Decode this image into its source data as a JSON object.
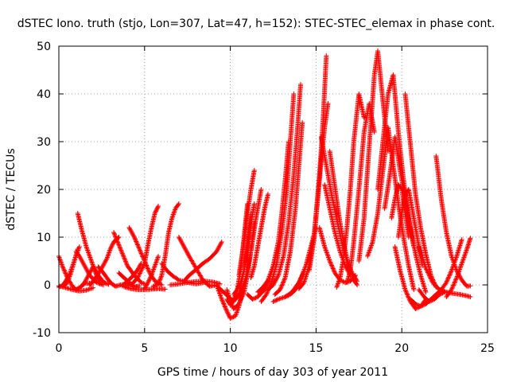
{
  "chart_data": {
    "type": "scatter",
    "title": "dSTEC Iono. truth (stjo, Lon=307, Lat=47, h=152): STEC-STEC_elemax in phase cont.",
    "xlabel": "GPS time / hours of day 303 of year 2011",
    "ylabel": "dSTEC  / TECUs",
    "xlim": [
      0,
      25
    ],
    "ylim": [
      -10,
      50
    ],
    "xticks": [
      0,
      5,
      10,
      15,
      20,
      25
    ],
    "yticks": [
      -10,
      0,
      10,
      20,
      30,
      40,
      50
    ],
    "grid": true,
    "marker": "+",
    "color": "#ff0000",
    "series": [
      {
        "x": [
          0.0,
          0.2,
          0.5,
          0.8,
          1.0,
          1.2,
          1.5,
          2.0
        ],
        "y": [
          6,
          4,
          1.5,
          -0.3,
          -1.0,
          -0.6,
          0.3,
          0.4
        ]
      },
      {
        "x": [
          0.0,
          0.2,
          0.4,
          0.6,
          0.8,
          1.0,
          1.2
        ],
        "y": [
          -0.5,
          -0.2,
          0.8,
          2.0,
          4.0,
          6.0,
          8.0
        ]
      },
      {
        "x": [
          0.3,
          0.5,
          0.7,
          0.9,
          1.1
        ],
        "y": [
          -0.2,
          0.5,
          2.5,
          5.0,
          7.5
        ]
      },
      {
        "x": [
          0.0,
          0.4,
          0.8,
          1.2,
          1.6,
          2.0
        ],
        "y": [
          -0.2,
          -0.6,
          -1.0,
          -1.3,
          -1.1,
          -0.6
        ]
      },
      {
        "x": [
          1.1,
          1.3,
          1.6,
          2.0,
          2.3,
          2.6,
          2.9
        ],
        "y": [
          15,
          12,
          8,
          4,
          2,
          0.6,
          0.1
        ]
      },
      {
        "x": [
          1.0,
          1.2,
          1.5,
          1.8,
          2.2,
          2.6
        ],
        "y": [
          7,
          6,
          4,
          2,
          0.5,
          0.0
        ]
      },
      {
        "x": [
          1.3,
          1.5,
          1.8,
          2.0,
          2.2,
          2.4
        ],
        "y": [
          -0.3,
          0.5,
          2.5,
          3.8,
          2.0,
          0.2
        ]
      },
      {
        "x": [
          1.8,
          2.0,
          2.2,
          2.5,
          2.8,
          3.0,
          3.2,
          3.5
        ],
        "y": [
          0.0,
          0.8,
          1.8,
          3.5,
          5.5,
          7.5,
          9.0,
          10.0
        ]
      },
      {
        "x": [
          2.3,
          2.6,
          3.0,
          3.3,
          3.6,
          4.0
        ],
        "y": [
          3.8,
          2.5,
          0.5,
          -0.3,
          0.0,
          0.2
        ]
      },
      {
        "x": [
          3.2,
          3.6,
          4.0,
          4.4,
          4.8,
          5.0
        ],
        "y": [
          11,
          7.5,
          4,
          2,
          0.5,
          0.2
        ]
      },
      {
        "x": [
          3.7,
          4.0,
          4.3,
          4.6,
          4.8
        ],
        "y": [
          -0.2,
          0.8,
          1.8,
          3.2,
          4.5
        ]
      },
      {
        "x": [
          3.5,
          3.8,
          4.1,
          4.4,
          4.7
        ],
        "y": [
          2.5,
          1.5,
          0.5,
          -0.4,
          -0.2
        ]
      },
      {
        "x": [
          4.1,
          4.4,
          4.7,
          5.0,
          5.3,
          5.6,
          6.0
        ],
        "y": [
          12,
          10,
          7.5,
          5,
          2.5,
          0.8,
          0.0
        ]
      },
      {
        "x": [
          4.0,
          4.3,
          4.6,
          5.0,
          5.2,
          5.4,
          5.6,
          5.8
        ],
        "y": [
          -0.2,
          0.3,
          1.5,
          4.5,
          8.5,
          12,
          15,
          16.5
        ]
      },
      {
        "x": [
          3.8,
          4.2,
          4.6,
          5.0,
          5.4,
          5.8,
          6.2
        ],
        "y": [
          -0.4,
          -0.8,
          -1.0,
          -1.0,
          -0.9,
          -0.8,
          -0.9
        ]
      },
      {
        "x": [
          5.0,
          5.2,
          5.4,
          5.6,
          5.8
        ],
        "y": [
          -0.8,
          0.5,
          2.0,
          4.0,
          6.0
        ]
      },
      {
        "x": [
          5.5,
          5.8,
          6.0,
          6.2,
          6.4,
          6.6,
          6.8,
          7.0
        ],
        "y": [
          -0.3,
          0.2,
          2.0,
          6.0,
          11,
          14,
          16,
          17
        ]
      },
      {
        "x": [
          6.0,
          6.3,
          6.6,
          7.0,
          7.5,
          8.0,
          8.5
        ],
        "y": [
          4.5,
          3.0,
          2.0,
          1.0,
          0.5,
          0.2,
          0.5
        ]
      },
      {
        "x": [
          7.0,
          7.3,
          7.6,
          8.0,
          8.4,
          8.8,
          9.2
        ],
        "y": [
          10,
          8,
          6,
          3.5,
          1.0,
          -0.3,
          0.0
        ]
      },
      {
        "x": [
          7.3,
          7.6,
          8.0,
          8.4,
          8.8,
          9.2,
          9.5
        ],
        "y": [
          0.8,
          2.0,
          3.2,
          4.5,
          5.5,
          7.0,
          9.0
        ]
      },
      {
        "x": [
          6.5,
          7.0,
          7.5,
          8.0,
          8.5,
          9.0,
          9.4
        ],
        "y": [
          0.0,
          0.2,
          0.5,
          0.7,
          0.8,
          0.6,
          0.2
        ]
      },
      {
        "x": [
          9.2,
          9.5,
          9.8,
          10.0,
          10.3,
          10.5,
          10.7,
          10.9
        ],
        "y": [
          0.0,
          -3.0,
          -5.5,
          -7.0,
          -6.5,
          -4.5,
          -1.5,
          1.5
        ]
      },
      {
        "x": [
          9.3,
          9.6,
          9.9,
          10.2,
          10.5,
          10.8,
          11.0,
          11.2
        ],
        "y": [
          -0.5,
          -1.5,
          -2.5,
          -3.5,
          -2.0,
          3.0,
          9.0,
          15.0
        ]
      },
      {
        "x": [
          9.8,
          10.0,
          10.2,
          10.4,
          10.6,
          10.8,
          11.0
        ],
        "y": [
          -3.0,
          -4.2,
          -3.0,
          -1.0,
          3.0,
          10.0,
          17.0
        ]
      },
      {
        "x": [
          9.8,
          10.0,
          10.2,
          10.5,
          10.8,
          11.0,
          11.2,
          11.4
        ],
        "y": [
          -1.0,
          -3.5,
          -5.0,
          -4.0,
          -1.5,
          2.0,
          7.0,
          13.0
        ]
      },
      {
        "x": [
          10.2,
          10.4,
          10.6,
          10.8,
          11.0,
          11.2,
          11.4
        ],
        "y": [
          -2.0,
          -1.0,
          0.5,
          3.0,
          7.0,
          13.0,
          17.0
        ]
      },
      {
        "x": [
          10.0,
          10.3,
          10.6,
          10.9,
          11.2,
          11.5,
          11.8
        ],
        "y": [
          -3.5,
          -3.0,
          -1.5,
          1.5,
          7.0,
          14.0,
          20.0
        ]
      },
      {
        "x": [
          11.2,
          11.4,
          11.6,
          11.8,
          12.0,
          12.2
        ],
        "y": [
          1.5,
          4.0,
          8.0,
          12.0,
          16.0,
          19.0
        ]
      },
      {
        "x": [
          10.5,
          10.8,
          11.0,
          11.2,
          11.4
        ],
        "y": [
          2.0,
          9.0,
          15.0,
          20.0,
          24.0
        ]
      },
      {
        "x": [
          11.0,
          11.3,
          11.6,
          12.0,
          12.3,
          12.6
        ],
        "y": [
          -2.0,
          -3.0,
          -2.5,
          -1.0,
          1.5,
          5.0
        ]
      },
      {
        "x": [
          11.6,
          11.9,
          12.2,
          12.5,
          12.8,
          13.0,
          13.2,
          13.4
        ],
        "y": [
          -1.5,
          -0.5,
          1.0,
          4.0,
          9.0,
          15.0,
          22.0,
          30.0
        ]
      },
      {
        "x": [
          11.8,
          12.1,
          12.4,
          12.7,
          13.0,
          13.3,
          13.5,
          13.7
        ],
        "y": [
          -3.5,
          -2.0,
          0.5,
          4.5,
          11.0,
          20.0,
          30.0,
          40.0
        ]
      },
      {
        "x": [
          12.2,
          12.5,
          12.8,
          13.1,
          13.4,
          13.7,
          13.9,
          14.1
        ],
        "y": [
          -1.0,
          0.0,
          2.0,
          6.0,
          13.0,
          23.0,
          32.0,
          42.0
        ]
      },
      {
        "x": [
          12.6,
          12.9,
          13.2,
          13.5,
          13.8,
          14.0,
          14.2
        ],
        "y": [
          -2.0,
          -1.0,
          1.5,
          7.0,
          16.0,
          25.0,
          34.0
        ]
      },
      {
        "x": [
          12.5,
          12.8,
          13.2,
          13.6,
          14.0,
          14.3,
          14.6
        ],
        "y": [
          -3.5,
          -3.0,
          -2.5,
          -1.5,
          0.5,
          3.0,
          6.0
        ]
      },
      {
        "x": [
          13.2,
          13.5,
          13.8,
          14.1,
          14.4,
          14.7,
          15.0
        ],
        "y": [
          -2.5,
          -2.0,
          -1.0,
          1.0,
          4.0,
          8.0,
          12.0
        ]
      },
      {
        "x": [
          14.0,
          14.3,
          14.6,
          14.9,
          15.2,
          15.4,
          15.6
        ],
        "y": [
          -0.8,
          0.5,
          4.0,
          11.0,
          23.0,
          34.0,
          48.0
        ]
      },
      {
        "x": [
          14.6,
          14.9,
          15.1,
          15.3,
          15.5,
          15.7
        ],
        "y": [
          3.0,
          10.0,
          18.0,
          26.0,
          33.0,
          38.0
        ]
      },
      {
        "x": [
          15.3,
          15.6,
          15.9,
          16.2,
          16.5,
          16.8,
          17.1,
          17.4
        ],
        "y": [
          31.0,
          25.0,
          19.0,
          14.0,
          9.0,
          5.0,
          2.5,
          0.8
        ]
      },
      {
        "x": [
          15.5,
          15.8,
          16.1,
          16.4,
          16.7,
          17.0
        ],
        "y": [
          21.0,
          16.0,
          11.0,
          7.0,
          4.0,
          2.0
        ]
      },
      {
        "x": [
          15.8,
          16.0,
          16.2,
          16.4,
          16.6,
          16.8,
          17.0,
          17.2,
          17.4
        ],
        "y": [
          28.0,
          23.0,
          18.0,
          13.0,
          9.0,
          5.5,
          3.0,
          1.0,
          0.0
        ]
      },
      {
        "x": [
          15.2,
          15.5,
          15.8,
          16.1,
          16.4,
          16.7,
          17.0,
          17.3
        ],
        "y": [
          12.0,
          8.0,
          5.0,
          2.5,
          1.0,
          0.5,
          0.8,
          2.0
        ]
      },
      {
        "x": [
          16.2,
          16.4,
          16.6,
          16.8,
          17.0,
          17.2,
          17.5,
          17.8
        ],
        "y": [
          -0.5,
          1.5,
          5.5,
          12.0,
          20.0,
          30.0,
          40.0,
          35.0
        ]
      },
      {
        "x": [
          16.8,
          17.0,
          17.2,
          17.5,
          17.8,
          18.1,
          18.4
        ],
        "y": [
          0.5,
          3.0,
          9.0,
          20.0,
          32.0,
          38.0,
          32.0
        ]
      },
      {
        "x": [
          17.5,
          17.8,
          18.0,
          18.2,
          18.4,
          18.6,
          18.8,
          19.0,
          19.2
        ],
        "y": [
          5.0,
          14.0,
          24.0,
          34.0,
          44.0,
          49.0,
          42.0,
          35.0,
          28.0
        ]
      },
      {
        "x": [
          18.0,
          18.3,
          18.6,
          18.9,
          19.2,
          19.5,
          19.8,
          20.1,
          20.4,
          20.7
        ],
        "y": [
          6.0,
          9.0,
          15.0,
          24.0,
          33.0,
          25.0,
          17.0,
          10.0,
          4.0,
          -1.0
        ]
      },
      {
        "x": [
          18.6,
          18.9,
          19.2,
          19.5,
          19.8,
          20.1,
          20.4,
          20.7
        ],
        "y": [
          20.0,
          30.0,
          40.0,
          44.0,
          32.0,
          22.0,
          14.0,
          8.0
        ]
      },
      {
        "x": [
          19.0,
          19.3,
          19.6,
          19.9,
          20.2,
          20.5,
          20.8,
          21.1,
          21.4
        ],
        "y": [
          16.0,
          23.0,
          31.0,
          24.0,
          18.0,
          12.0,
          6.5,
          2.0,
          -1.5
        ]
      },
      {
        "x": [
          19.4,
          19.6,
          19.8,
          20.0,
          20.2,
          20.4
        ],
        "y": [
          14.0,
          18.0,
          21.0,
          20.0,
          15.0,
          10.0
        ]
      },
      {
        "x": [
          19.8,
          20.0,
          20.2,
          20.4,
          20.6,
          20.9,
          21.2
        ],
        "y": [
          10.0,
          15.0,
          19.0,
          20.0,
          16.0,
          10.0,
          4.0
        ]
      },
      {
        "x": [
          20.2,
          20.4,
          20.6,
          20.8,
          21.1,
          21.4,
          21.7,
          22.0
        ],
        "y": [
          40.0,
          33.0,
          26.0,
          19.0,
          12.0,
          6.5,
          2.0,
          -0.5
        ]
      },
      {
        "x": [
          19.6,
          19.9,
          20.2,
          20.5,
          20.8,
          21.1,
          21.4
        ],
        "y": [
          8.0,
          3.0,
          -1.0,
          -3.5,
          -5.0,
          -4.5,
          -3.0
        ]
      },
      {
        "x": [
          20.5,
          20.8,
          21.1,
          21.4,
          21.7,
          22.0,
          22.3,
          22.6,
          22.9,
          23.2,
          23.5
        ],
        "y": [
          -3.0,
          -4.0,
          -4.5,
          -4.0,
          -3.0,
          -2.0,
          -1.0,
          0.5,
          3.0,
          6.0,
          9.5
        ]
      },
      {
        "x": [
          22.0,
          22.3,
          22.6,
          22.9,
          23.2,
          23.5,
          23.8,
          24.0
        ],
        "y": [
          27.0,
          18.0,
          11.0,
          6.0,
          3.0,
          1.0,
          -0.3,
          -0.2
        ]
      },
      {
        "x": [
          21.0,
          21.4,
          21.8,
          22.2,
          22.6,
          23.0,
          23.4,
          23.8,
          24.0
        ],
        "y": [
          8.0,
          3.5,
          0.5,
          -1.0,
          -1.5,
          -1.8,
          -2.0,
          -2.3,
          -2.5
        ]
      },
      {
        "x": [
          22.6,
          22.9,
          23.2,
          23.5,
          23.8,
          24.0
        ],
        "y": [
          -2.5,
          -1.0,
          1.5,
          4.5,
          7.5,
          9.8
        ]
      },
      {
        "x": [
          21.0,
          21.3,
          21.6,
          21.9,
          22.2,
          22.5
        ],
        "y": [
          -1.0,
          -2.5,
          -3.5,
          -3.0,
          -2.0,
          -1.5
        ]
      }
    ]
  }
}
